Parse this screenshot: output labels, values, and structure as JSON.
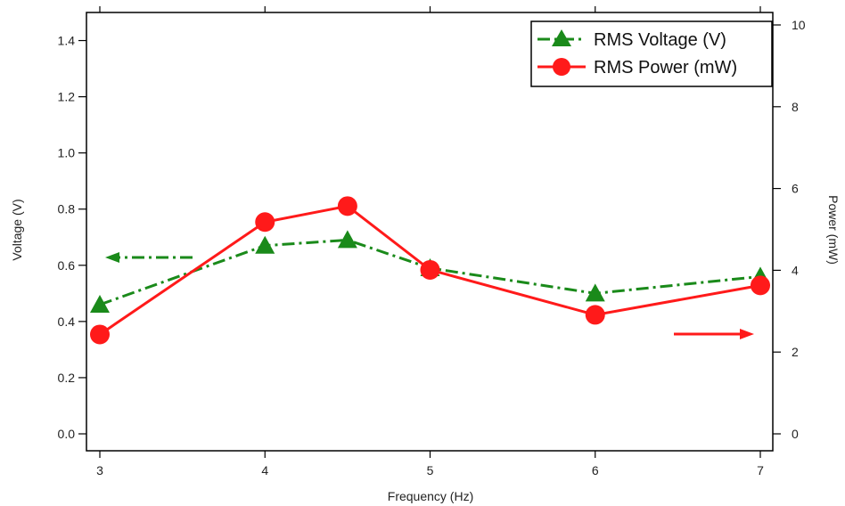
{
  "chart_data": {
    "type": "line",
    "xlabel": "Frequency (Hz)",
    "ylabel_left": "Voltage (V)",
    "ylabel_right": "Power (mW)",
    "x_ticks": [
      "3",
      "4",
      "5",
      "6",
      "7"
    ],
    "y_left_ticks": [
      "0.0",
      "0.2",
      "0.4",
      "0.6",
      "0.8",
      "1.0",
      "1.2",
      "1.4"
    ],
    "y_right_ticks": [
      "0",
      "2",
      "4",
      "6",
      "8",
      "10"
    ],
    "xlim": [
      3,
      7
    ],
    "ylim_left": [
      0,
      1.5
    ],
    "ylim_right": [
      0,
      10
    ],
    "legend_position": "top-right",
    "series": [
      {
        "name": "RMS Voltage (V)",
        "axis": "left",
        "color": "#1a8a1a",
        "line_style": "dash-dot",
        "marker": "triangle",
        "x": [
          3,
          4,
          4.5,
          5,
          6,
          7
        ],
        "y": [
          0.46,
          0.67,
          0.69,
          0.59,
          0.5,
          0.56
        ]
      },
      {
        "name": "RMS Power (mW)",
        "axis": "right",
        "color": "#ff1a1a",
        "line_style": "solid",
        "marker": "circle",
        "x": [
          3,
          4,
          4.5,
          5,
          6,
          7
        ],
        "y": [
          2.43,
          5.18,
          5.57,
          4.01,
          2.91,
          3.63
        ]
      }
    ],
    "annotations": [
      {
        "type": "arrow",
        "direction": "left",
        "points_to": "left axis",
        "color": "#1a8a1a",
        "style": "dash-dot"
      },
      {
        "type": "arrow",
        "direction": "right",
        "points_to": "right axis",
        "color": "#ff1a1a",
        "style": "solid"
      }
    ]
  }
}
